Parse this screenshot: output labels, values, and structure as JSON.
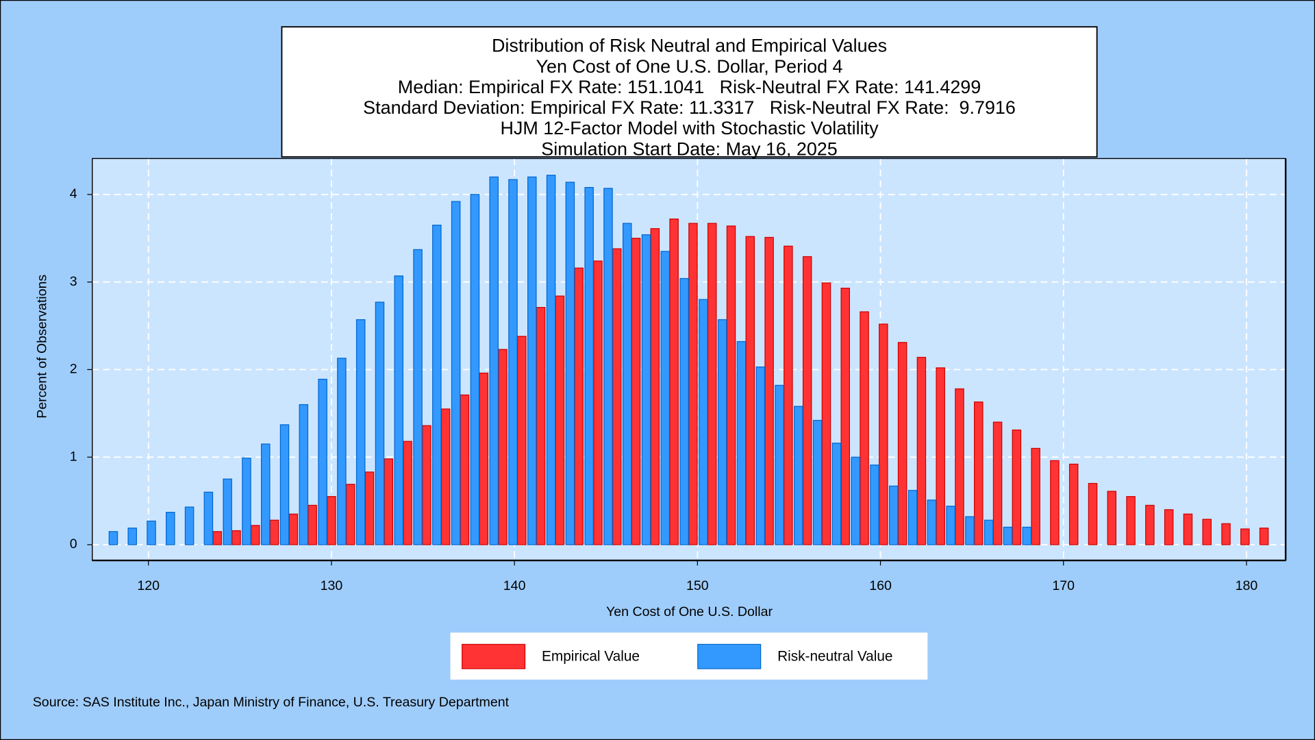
{
  "chart_data": {
    "type": "bar",
    "title": [
      "Distribution of Risk Neutral and Empirical Values",
      "Yen Cost of One U.S. Dollar, Period 4",
      "Median: Empirical FX Rate: 151.1041   Risk-Neutral FX Rate: 141.4299",
      "Standard Deviation: Empirical FX Rate: 11.3317   Risk-Neutral FX Rate:  9.7916",
      "HJM 12-Factor Model with Stochastic Volatility",
      "Simulation Start Date: May 16, 2025"
    ],
    "x_label": "Yen Cost of One U.S. Dollar",
    "y_label": "Percent of Observations",
    "source": "Source: SAS Institute Inc., Japan Ministry of Finance, U.S. Treasury Department",
    "xlim": [
      116.93,
      182.14
    ],
    "xticks": [
      120,
      130,
      140,
      150,
      160,
      170,
      180
    ],
    "ylim": [
      -0.18,
      4.41
    ],
    "yticks": [
      0,
      1,
      2,
      3,
      4
    ],
    "grid": true,
    "series": [
      {
        "name": "Empirical Value",
        "color": "#ff3333",
        "x": [
          123.76,
          124.8,
          125.84,
          126.88,
          127.92,
          128.96,
          130.0,
          131.04,
          132.08,
          133.12,
          134.16,
          135.2,
          136.24,
          137.28,
          138.32,
          139.36,
          140.4,
          141.44,
          142.48,
          143.52,
          144.56,
          145.6,
          146.64,
          147.68,
          148.72,
          149.76,
          150.8,
          151.84,
          152.88,
          153.92,
          154.96,
          156.0,
          157.04,
          158.08,
          159.12,
          160.16,
          161.2,
          162.24,
          163.28,
          164.32,
          165.36,
          166.4,
          167.44,
          168.48,
          169.52,
          170.56,
          171.6,
          172.64,
          173.68,
          174.72,
          175.76,
          176.8,
          177.84,
          178.88,
          179.92,
          180.96
        ],
        "values": [
          0.15,
          0.16,
          0.22,
          0.28,
          0.35,
          0.45,
          0.55,
          0.69,
          0.83,
          0.98,
          1.18,
          1.36,
          1.55,
          1.71,
          1.96,
          2.23,
          2.38,
          2.71,
          2.84,
          3.16,
          3.24,
          3.38,
          3.5,
          3.61,
          3.72,
          3.67,
          3.67,
          3.64,
          3.52,
          3.51,
          3.41,
          3.29,
          2.99,
          2.93,
          2.66,
          2.52,
          2.31,
          2.14,
          2.02,
          1.78,
          1.63,
          1.4,
          1.31,
          1.1,
          0.96,
          0.92,
          0.7,
          0.61,
          0.55,
          0.45,
          0.4,
          0.35,
          0.29,
          0.24,
          0.18,
          0.19
        ]
      },
      {
        "name": "Risk-neutral Value",
        "color": "#3399ff",
        "x": [
          118.08,
          119.12,
          120.16,
          121.2,
          122.24,
          123.28,
          124.32,
          125.36,
          126.4,
          127.44,
          128.48,
          129.52,
          130.56,
          131.6,
          132.64,
          133.68,
          134.72,
          135.76,
          136.8,
          137.84,
          138.88,
          139.92,
          140.96,
          142.0,
          143.04,
          144.08,
          145.12,
          146.16,
          147.2,
          148.24,
          149.28,
          150.32,
          151.36,
          152.4,
          153.44,
          154.48,
          155.52,
          156.56,
          157.6,
          158.64,
          159.68,
          160.72,
          161.76,
          162.8,
          163.84,
          164.88,
          165.92,
          166.96,
          168.0
        ],
        "values": [
          0.15,
          0.19,
          0.27,
          0.37,
          0.43,
          0.6,
          0.75,
          0.99,
          1.15,
          1.37,
          1.6,
          1.89,
          2.13,
          2.57,
          2.77,
          3.07,
          3.37,
          3.65,
          3.92,
          4.0,
          4.2,
          4.17,
          4.2,
          4.22,
          4.14,
          4.08,
          4.07,
          3.67,
          3.54,
          3.35,
          3.04,
          2.8,
          2.57,
          2.32,
          2.03,
          1.82,
          1.58,
          1.42,
          1.16,
          1.0,
          0.91,
          0.67,
          0.62,
          0.51,
          0.44,
          0.32,
          0.28,
          0.2,
          0.2
        ]
      }
    ]
  }
}
